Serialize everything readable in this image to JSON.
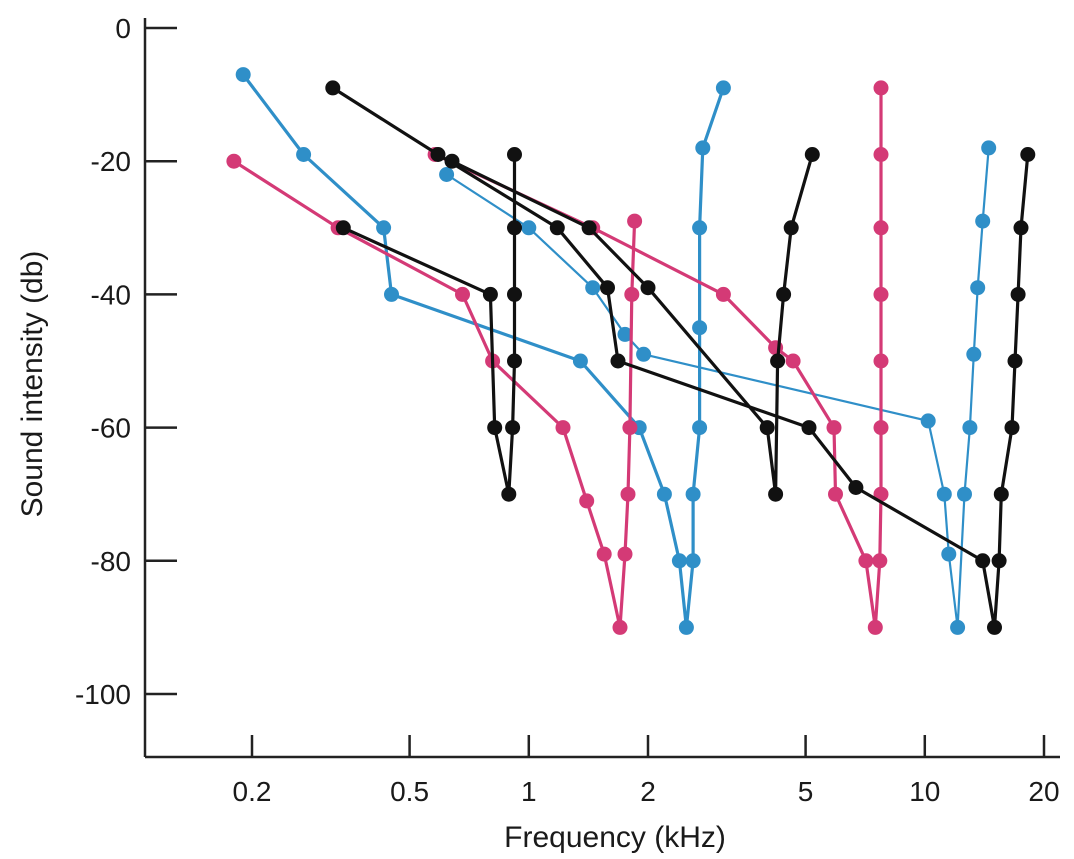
{
  "chart_data": {
    "type": "line",
    "xlabel": "Frequency (kHz)",
    "ylabel": "Sound intensity (db)",
    "x_scale": "log",
    "xlim": [
      0.125,
      23
    ],
    "ylim": [
      -110,
      0
    ],
    "x_ticks": [
      0.2,
      0.5,
      1,
      2,
      5,
      10,
      20
    ],
    "x_tick_labels": [
      "0.2",
      "0.5",
      "1",
      "2",
      "5",
      "10",
      "20"
    ],
    "y_ticks": [
      0,
      -20,
      -40,
      -60,
      -80,
      -100
    ],
    "y_tick_labels": [
      "0",
      "-20",
      "-40",
      "-60",
      "-80",
      "-100"
    ],
    "grid": false,
    "legend": "none",
    "colors": {
      "blue": "#2f8fc8",
      "pink": "#d43a76",
      "black": "#111111"
    },
    "series": [
      {
        "color": "blue",
        "points": [
          [
            0.19,
            -7
          ],
          [
            0.27,
            -19
          ],
          [
            0.43,
            -30
          ],
          [
            0.45,
            -40
          ],
          [
            1.35,
            -50
          ],
          [
            1.9,
            -60
          ],
          [
            2.2,
            -70
          ],
          [
            2.4,
            -80
          ],
          [
            2.5,
            -90
          ],
          [
            2.6,
            -80
          ],
          [
            2.6,
            -70
          ],
          [
            2.7,
            -60
          ],
          [
            2.7,
            -45
          ],
          [
            2.7,
            -30
          ],
          [
            2.75,
            -18
          ],
          [
            3.1,
            -9
          ]
        ]
      },
      {
        "color": "blue",
        "thin": true,
        "points": [
          [
            0.62,
            -22
          ],
          [
            1.0,
            -30
          ],
          [
            1.45,
            -39
          ],
          [
            1.75,
            -46
          ],
          [
            1.95,
            -49
          ],
          [
            10.2,
            -59
          ],
          [
            11.2,
            -70
          ],
          [
            11.5,
            -79
          ],
          [
            12.1,
            -90
          ],
          [
            12.6,
            -70
          ],
          [
            13.0,
            -60
          ],
          [
            13.3,
            -49
          ],
          [
            13.6,
            -39
          ],
          [
            14.0,
            -29
          ],
          [
            14.5,
            -18
          ]
        ]
      },
      {
        "color": "pink",
        "points": [
          [
            0.18,
            -20
          ],
          [
            0.33,
            -30
          ],
          [
            0.68,
            -40
          ],
          [
            0.81,
            -50
          ],
          [
            1.22,
            -60
          ],
          [
            1.4,
            -71
          ],
          [
            1.55,
            -79
          ],
          [
            1.7,
            -90
          ],
          [
            1.75,
            -79
          ],
          [
            1.78,
            -70
          ],
          [
            1.8,
            -60
          ],
          [
            1.82,
            -40
          ],
          [
            1.85,
            -29
          ]
        ]
      },
      {
        "color": "pink",
        "points": [
          [
            0.58,
            -19
          ],
          [
            1.45,
            -30
          ],
          [
            3.1,
            -40
          ],
          [
            4.2,
            -48
          ],
          [
            4.65,
            -50
          ],
          [
            5.9,
            -60
          ],
          [
            5.95,
            -70
          ],
          [
            7.1,
            -80
          ],
          [
            7.5,
            -90
          ],
          [
            7.7,
            -80
          ],
          [
            7.75,
            -70
          ],
          [
            7.75,
            -60
          ],
          [
            7.75,
            -50
          ],
          [
            7.75,
            -40
          ],
          [
            7.75,
            -30
          ],
          [
            7.75,
            -19
          ],
          [
            7.75,
            -9
          ]
        ]
      },
      {
        "color": "black",
        "points": [
          [
            0.34,
            -30
          ],
          [
            0.8,
            -40
          ],
          [
            0.82,
            -60
          ],
          [
            0.89,
            -70
          ],
          [
            0.91,
            -60
          ],
          [
            0.92,
            -50
          ],
          [
            0.92,
            -40
          ],
          [
            0.92,
            -30
          ],
          [
            0.92,
            -19
          ]
        ]
      },
      {
        "color": "black",
        "points": [
          [
            0.32,
            -9
          ],
          [
            0.59,
            -19
          ],
          [
            1.18,
            -30
          ],
          [
            1.58,
            -39
          ],
          [
            1.68,
            -50
          ],
          [
            5.1,
            -60
          ],
          [
            6.7,
            -69
          ],
          [
            14.0,
            -80
          ],
          [
            15.0,
            -90
          ],
          [
            15.4,
            -80
          ],
          [
            15.6,
            -70
          ],
          [
            16.6,
            -60
          ],
          [
            16.9,
            -50
          ],
          [
            17.2,
            -40
          ],
          [
            17.5,
            -30
          ],
          [
            18.2,
            -19
          ]
        ]
      },
      {
        "color": "black",
        "points": [
          [
            0.64,
            -20
          ],
          [
            1.42,
            -30
          ],
          [
            2.0,
            -39
          ],
          [
            4.0,
            -60
          ],
          [
            4.2,
            -70
          ],
          [
            4.25,
            -50
          ],
          [
            4.4,
            -40
          ],
          [
            4.6,
            -30
          ],
          [
            5.2,
            -19
          ]
        ]
      }
    ]
  }
}
